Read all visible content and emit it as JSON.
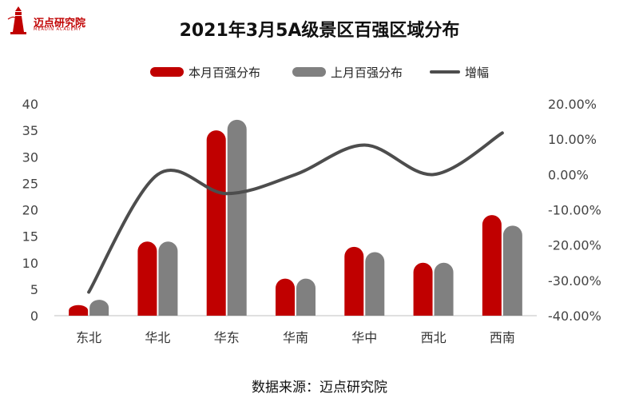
{
  "logo": {
    "name": "迈点研究院",
    "subtitle": "MEADIN ACADEMY",
    "icon": "lighthouse-icon",
    "color": "#c00000"
  },
  "colors": {
    "current": "#c00000",
    "previous": "#808080",
    "line": "#4d4d4d"
  },
  "source_text": "数据来源：迈点研究院",
  "chart_data": {
    "type": "bar",
    "title": "2021年3月5A级景区百强区域分布",
    "categories": [
      "东北",
      "华北",
      "华东",
      "华南",
      "华中",
      "西北",
      "西南"
    ],
    "series": [
      {
        "name": "本月百强分布",
        "type": "bar",
        "axis": "left",
        "values": [
          2,
          14,
          35,
          7,
          13,
          10,
          19
        ]
      },
      {
        "name": "上月百强分布",
        "type": "bar",
        "axis": "left",
        "values": [
          3,
          14,
          37,
          7,
          12,
          10,
          17
        ]
      },
      {
        "name": "增幅",
        "type": "line",
        "axis": "right",
        "smooth": true,
        "values": [
          -0.3333,
          0.0,
          -0.0541,
          0.0,
          0.0833,
          0.0,
          0.1176
        ]
      }
    ],
    "ylim_left": [
      0,
      40
    ],
    "yticks_left": [
      "0",
      "5",
      "10",
      "15",
      "20",
      "25",
      "30",
      "35",
      "40"
    ],
    "ylim_right": [
      -0.4,
      0.2
    ],
    "yticks_right": [
      "-40.00%",
      "-30.00%",
      "-20.00%",
      "-10.00%",
      "0.00%",
      "10.00%",
      "20.00%"
    ],
    "grid": false,
    "legend_position": "top"
  }
}
